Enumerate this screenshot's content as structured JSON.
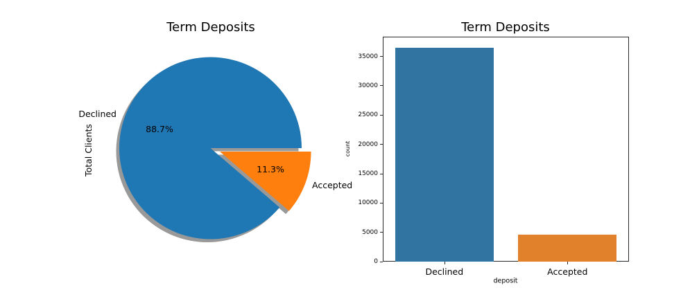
{
  "chart_data": [
    {
      "type": "pie",
      "title": "Term Deposits",
      "ylabel": "Total Clients",
      "labels": [
        "Declined",
        "Accepted"
      ],
      "values_pct": [
        88.7,
        11.3
      ],
      "autopct_labels": [
        "88.7%",
        "11.3%"
      ],
      "colors": [
        "#1f77b4",
        "#ff7f0e"
      ],
      "shadow": true,
      "shadow_color": "#999999",
      "explode": [
        0,
        0.11
      ],
      "startangle": 0,
      "counterclock": true
    },
    {
      "type": "bar",
      "title": "Term Deposits",
      "xlabel": "deposit",
      "ylabel": "count",
      "categories": [
        "Declined",
        "Accepted"
      ],
      "values": [
        36548,
        4640
      ],
      "colors": [
        "#3274a1",
        "#e1812c"
      ],
      "yticks": [
        0,
        5000,
        10000,
        15000,
        20000,
        25000,
        30000,
        35000
      ],
      "ytick_labels": [
        "0",
        "5000",
        "10000",
        "15000",
        "20000",
        "25000",
        "30000",
        "35000"
      ],
      "ylim": [
        0,
        38375
      ],
      "grid": false,
      "legend": null
    }
  ]
}
